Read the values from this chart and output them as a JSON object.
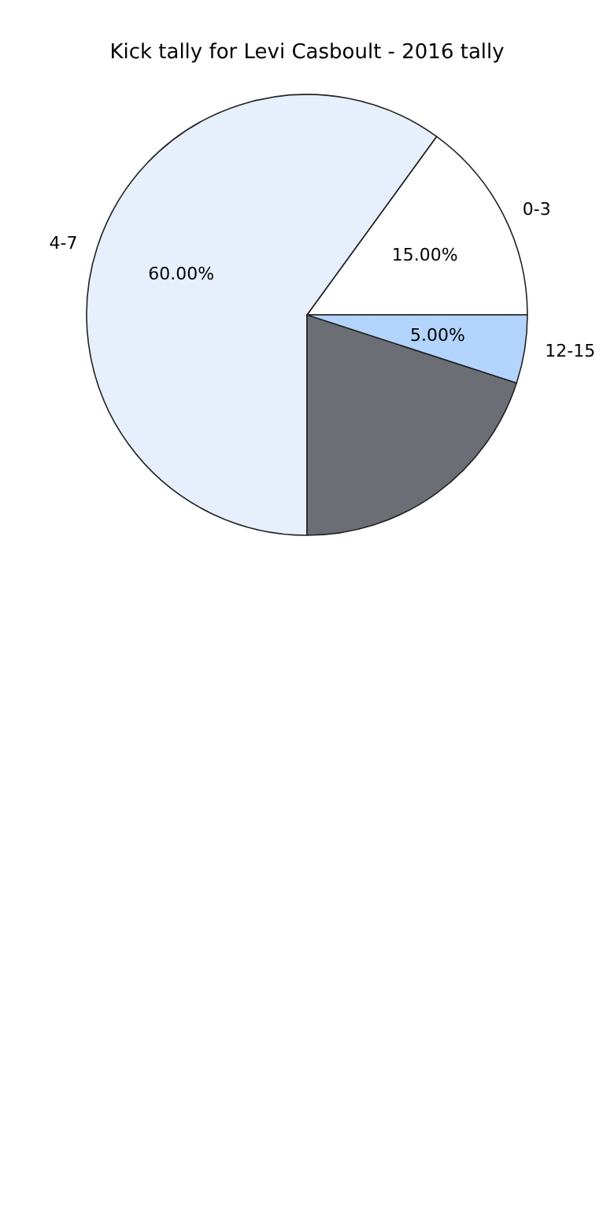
{
  "chart_data": {
    "type": "pie",
    "title": "Kick tally for Levi Casboult - 2016 tally",
    "categories": [
      "0-3",
      "4-7",
      null,
      "12-15"
    ],
    "values": [
      15,
      60,
      20,
      5
    ],
    "value_labels": [
      "15.00%",
      "60.00%",
      null,
      "5.00%"
    ],
    "colors": [
      "#ffffff",
      "#e8effc",
      "#6b6e75",
      "#b3d4fc"
    ],
    "legend": false
  }
}
